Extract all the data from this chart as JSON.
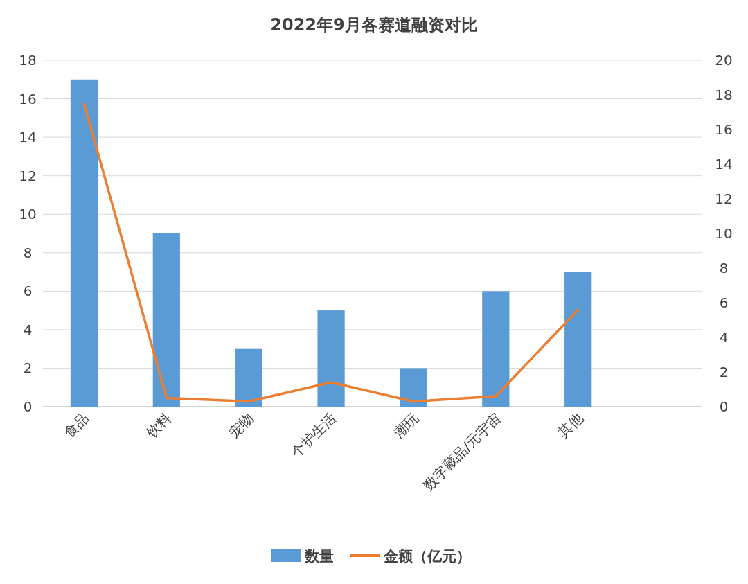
{
  "chart_data": {
    "type": "bar",
    "title": "2022年9月各赛道融资对比",
    "categories": [
      "食品",
      "饮料",
      "宠物",
      "个护生活",
      "潮玩",
      "数字藏品/元宇宙",
      "其他",
      null
    ],
    "series": [
      {
        "name": "数量",
        "color": "#5b9bd5",
        "values": [
          17,
          9,
          3,
          5,
          2,
          6,
          7,
          null
        ]
      },
      {
        "name": "金额（亿元）",
        "type": "line",
        "axis": "y2",
        "color": "#ed7d31",
        "values": [
          17.5,
          0.5,
          0.3,
          1.4,
          0.3,
          0.6,
          5.6,
          null
        ]
      }
    ],
    "ylim": [
      0,
      18
    ],
    "yticks": [
      0,
      2,
      4,
      6,
      8,
      10,
      12,
      14,
      16,
      18
    ],
    "y2lim": [
      0,
      20
    ],
    "y2ticks": [
      0,
      2,
      4,
      6,
      8,
      10,
      12,
      14,
      16,
      18,
      20
    ],
    "grid": "y",
    "legend": "bottom"
  }
}
